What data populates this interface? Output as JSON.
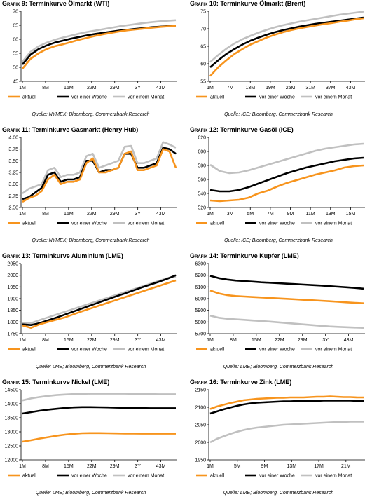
{
  "legend_labels": [
    "aktuell",
    "vor einer Woche",
    "vor einem Monat"
  ],
  "colors": {
    "aktuell": "#f7941d",
    "woche": "#000000",
    "monat": "#c0c0c0"
  },
  "charts": [
    {
      "figure_prefix": "Grafik 9:",
      "title": "Terminkurve Ölmarkt (WTI)",
      "source": "Quelle: NYMEX; Bloomberg, Commerzbank Research",
      "chart_data": {
        "type": "line",
        "x_ticks": [
          "1M",
          "8M",
          "15M",
          "22M",
          "29M",
          "3Y",
          "43M"
        ],
        "ylim": [
          45,
          70
        ],
        "y_ticks": [
          45,
          50,
          55,
          60,
          65,
          70
        ],
        "series": [
          {
            "name": "aktuell",
            "values": [
              49.5,
              53,
              55,
              56.5,
              57.5,
              58.2,
              59,
              59.8,
              60.5,
              61.2,
              61.8,
              62.3,
              62.8,
              63.2,
              63.5,
              63.8,
              64.1,
              64.4,
              64.6,
              64.7
            ]
          },
          {
            "name": "vor einer Woche",
            "values": [
              51,
              54.5,
              56.5,
              57.8,
              58.8,
              59.5,
              60.2,
              60.8,
              61.4,
              61.9,
              62.3,
              62.7,
              63.1,
              63.4,
              63.7,
              64,
              64.3,
              64.5,
              64.7,
              64.8
            ]
          },
          {
            "name": "vor einem Monat",
            "values": [
              52,
              55.5,
              57.5,
              58.8,
              59.8,
              60.6,
              61.3,
              62,
              62.6,
              63.1,
              63.6,
              64.1,
              64.6,
              65,
              65.4,
              65.8,
              66.1,
              66.4,
              66.6,
              66.8
            ]
          }
        ]
      }
    },
    {
      "figure_prefix": "Grafik 10:",
      "title": "Terminkurve Ölmarkt (Brent)",
      "source": "Quelle: ICE; Bloomberg, Commerzbank Research",
      "chart_data": {
        "type": "line",
        "x_ticks": [
          "1M",
          "7M",
          "13M",
          "19M",
          "25M",
          "31M",
          "37M",
          "43M"
        ],
        "ylim": [
          55,
          75
        ],
        "y_ticks": [
          55,
          60,
          65,
          70,
          75
        ],
        "series": [
          {
            "name": "aktuell",
            "values": [
              56.5,
              59,
              61,
              62.8,
              64.2,
              65.5,
              66.5,
              67.5,
              68.3,
              69,
              69.6,
              70.1,
              70.5,
              70.9,
              71.3,
              71.6,
              72,
              72.3,
              72.7,
              73
            ]
          },
          {
            "name": "vor einer Woche",
            "values": [
              59,
              61,
              62.8,
              64.2,
              65.5,
              66.6,
              67.5,
              68.3,
              69,
              69.6,
              70.1,
              70.6,
              71,
              71.4,
              71.7,
              72,
              72.3,
              72.6,
              72.9,
              73.2
            ]
          },
          {
            "name": "vor einem Monat",
            "values": [
              60.5,
              62.5,
              64.3,
              65.8,
              67,
              68,
              68.9,
              69.7,
              70.4,
              71,
              71.5,
              72,
              72.4,
              72.8,
              73.2,
              73.6,
              74,
              74.3,
              74.6,
              74.9
            ]
          }
        ]
      }
    },
    {
      "figure_prefix": "Grafik 11:",
      "title": "Terminkurve Gasmarkt (Henry Hub)",
      "source": "Quelle: NYMEX; Bloomberg, Commerzbank Research",
      "chart_data": {
        "type": "line",
        "x_ticks": [
          "1M",
          "8M",
          "15M",
          "22M",
          "29M",
          "3Y",
          "43M"
        ],
        "ylim": [
          2.5,
          4.0
        ],
        "y_ticks": [
          2.5,
          2.75,
          3.0,
          3.25,
          3.5,
          3.75,
          4.0
        ],
        "series": [
          {
            "name": "aktuell",
            "values": [
              2.62,
              2.7,
              2.75,
              2.85,
              3.1,
              3.2,
              3.0,
              3.05,
              3.05,
              3.1,
              3.45,
              3.55,
              3.25,
              3.25,
              3.3,
              3.35,
              3.65,
              3.7,
              3.3,
              3.3,
              3.35,
              3.4,
              3.75,
              3.7,
              3.35
            ]
          },
          {
            "name": "vor einer Woche",
            "values": [
              2.68,
              2.72,
              2.82,
              2.92,
              3.2,
              3.25,
              3.05,
              3.1,
              3.1,
              3.15,
              3.5,
              3.5,
              3.25,
              3.3,
              3.3,
              3.35,
              3.65,
              3.65,
              3.35,
              3.35,
              3.4,
              3.45,
              3.78,
              3.75,
              3.65
            ]
          },
          {
            "name": "vor einem Monat",
            "values": [
              2.8,
              2.9,
              2.95,
              3.0,
              3.3,
              3.35,
              3.15,
              3.2,
              3.2,
              3.25,
              3.6,
              3.65,
              3.35,
              3.4,
              3.45,
              3.5,
              3.8,
              3.82,
              3.45,
              3.45,
              3.5,
              3.55,
              3.9,
              3.85,
              3.78
            ]
          }
        ]
      }
    },
    {
      "figure_prefix": "Grafik 12:",
      "title": "Terminkurve Gasöl (ICE)",
      "source": "Quelle: ICE; Bloomberg, Commerzbank Research",
      "chart_data": {
        "type": "line",
        "x_ticks": [
          "1M",
          "3M",
          "5M",
          "7M",
          "9M",
          "11M",
          "13M",
          "15M"
        ],
        "ylim": [
          520,
          620
        ],
        "y_ticks": [
          520,
          540,
          560,
          580,
          600,
          620
        ],
        "series": [
          {
            "name": "aktuell",
            "values": [
              530,
              529,
              530,
              531,
              534,
              540,
              544,
              550,
              555,
              559,
              563,
              567,
              570,
              573,
              577,
              579,
              580
            ]
          },
          {
            "name": "vor einer Woche",
            "values": [
              545,
              543,
              543,
              545,
              549,
              554,
              559,
              564,
              569,
              573,
              577,
              580,
              583,
              586,
              588,
              590,
              591
            ]
          },
          {
            "name": "vor einem Monat",
            "values": [
              581,
              572,
              569,
              570,
              573,
              577,
              581,
              585,
              589,
              593,
              597,
              601,
              604,
              606,
              608,
              610,
              611
            ]
          }
        ]
      }
    },
    {
      "figure_prefix": "Grafik 13:",
      "title": "Terminkurve Aluminium (LME)",
      "source": "Quelle: LME; Bloomberg, Commerzbank Research",
      "chart_data": {
        "type": "line",
        "x_ticks": [
          "1M",
          "8M",
          "15M",
          "22M",
          "29M",
          "3Y",
          "43M"
        ],
        "ylim": [
          1750,
          2050
        ],
        "y_ticks": [
          1750,
          1800,
          1850,
          1900,
          1950,
          2000,
          2050
        ],
        "series": [
          {
            "name": "aktuell",
            "values": [
              1785,
              1775,
              1790,
              1800,
              1810,
              1820,
              1833,
              1846,
              1858,
              1870,
              1882,
              1894,
              1906,
              1918,
              1930,
              1942,
              1954,
              1966,
              1978
            ]
          },
          {
            "name": "vor einer Woche",
            "values": [
              1790,
              1787,
              1795,
              1807,
              1819,
              1832,
              1845,
              1858,
              1871,
              1884,
              1897,
              1910,
              1922,
              1935,
              1948,
              1960,
              1972,
              1985,
              2000
            ]
          },
          {
            "name": "vor einem Monat",
            "values": [
              1795,
              1795,
              1808,
              1820,
              1832,
              1844,
              1856,
              1868,
              1880,
              1892,
              1904,
              1916,
              1928,
              1940,
              1952,
              1964,
              1976,
              1988,
              1995
            ]
          }
        ]
      }
    },
    {
      "figure_prefix": "Grafik 14:",
      "title": "Terminkurve Kupfer (LME)",
      "source": "Quelle: LME; Bloomberg, Commerzbank Research",
      "chart_data": {
        "type": "line",
        "x_ticks": [
          "1M",
          "8M",
          "15M",
          "22M",
          "29M",
          "3Y",
          "43M"
        ],
        "ylim": [
          5700,
          6300
        ],
        "y_ticks": [
          5700,
          5800,
          5900,
          6000,
          6100,
          6200,
          6300
        ],
        "series": [
          {
            "name": "aktuell",
            "values": [
              6070,
              6045,
              6030,
              6022,
              6018,
              6014,
              6010,
              6006,
              6002,
              5998,
              5994,
              5990,
              5986,
              5982,
              5978,
              5973,
              5968,
              5964,
              5960
            ]
          },
          {
            "name": "vor einer Woche",
            "values": [
              6195,
              6175,
              6163,
              6155,
              6150,
              6145,
              6140,
              6136,
              6132,
              6128,
              6124,
              6120,
              6116,
              6112,
              6107,
              6102,
              6097,
              6092,
              6085
            ]
          },
          {
            "name": "vor einem Monat",
            "values": [
              5855,
              5836,
              5828,
              5823,
              5818,
              5813,
              5808,
              5803,
              5797,
              5791,
              5785,
              5779,
              5773,
              5767,
              5762,
              5758,
              5755,
              5752,
              5750
            ]
          }
        ]
      }
    },
    {
      "figure_prefix": "Grafik 15:",
      "title": "Terminkurve Nickel (LME)",
      "source": "Quelle: LME; Bloomberg, Commerzbank Research",
      "chart_data": {
        "type": "line",
        "x_ticks": [
          "1M",
          "8M",
          "15M",
          "22M",
          "29M",
          "3Y",
          "43M"
        ],
        "ylim": [
          12000,
          14500
        ],
        "y_ticks": [
          12000,
          12500,
          13000,
          13500,
          14000,
          14500
        ],
        "series": [
          {
            "name": "aktuell",
            "values": [
              12650,
              12700,
              12760,
              12810,
              12860,
              12900,
              12930,
              12950,
              12955,
              12955,
              12950,
              12945,
              12940,
              12938,
              12935,
              12935,
              12935,
              12935,
              12935
            ]
          },
          {
            "name": "vor einer Woche",
            "values": [
              13650,
              13700,
              13750,
              13790,
              13820,
              13850,
              13870,
              13880,
              13880,
              13875,
              13870,
              13860,
              13855,
              13850,
              13845,
              13840,
              13840,
              13840,
              13840
            ]
          },
          {
            "name": "vor einem Monat",
            "values": [
              14120,
              14190,
              14240,
              14280,
              14310,
              14330,
              14345,
              14355,
              14360,
              14360,
              14360,
              14360,
              14360,
              14355,
              14350,
              14345,
              14340,
              14340,
              14340
            ]
          }
        ]
      }
    },
    {
      "figure_prefix": "Grafik 16:",
      "title": "Terminkurve Zink (LME)",
      "source": "Quelle: LME; Bloomberg, Commerzbank Research",
      "chart_data": {
        "type": "line",
        "x_ticks": [
          "1M",
          "5M",
          "9M",
          "13M",
          "17M",
          "21M"
        ],
        "ylim": [
          1950,
          2150
        ],
        "y_ticks": [
          1950,
          2000,
          2050,
          2100,
          2150
        ],
        "series": [
          {
            "name": "aktuell",
            "values": [
              2095,
              2102,
              2107,
              2112,
              2116,
              2120,
              2122,
              2124,
              2125,
              2126,
              2127,
              2127,
              2128,
              2128,
              2128,
              2129,
              2130,
              2130,
              2131,
              2130,
              2129,
              2129,
              2128,
              2128
            ]
          },
          {
            "name": "vor einer Woche",
            "values": [
              2082,
              2088,
              2094,
              2099,
              2104,
              2108,
              2111,
              2113,
              2114,
              2115,
              2116,
              2117,
              2117,
              2118,
              2118,
              2118,
              2118,
              2119,
              2119,
              2119,
              2119,
              2119,
              2118,
              2118
            ]
          },
          {
            "name": "vor einem Monat",
            "values": [
              2000,
              2010,
              2017,
              2024,
              2030,
              2035,
              2039,
              2042,
              2044,
              2046,
              2048,
              2050,
              2051,
              2052,
              2053,
              2054,
              2055,
              2056,
              2057,
              2058,
              2058,
              2059,
              2059,
              2059
            ]
          }
        ]
      }
    }
  ]
}
